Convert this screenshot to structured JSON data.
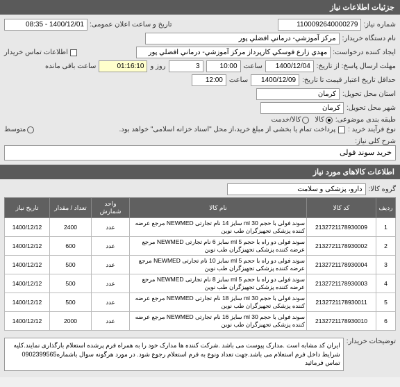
{
  "header1": "جزئیات اطلاعات نیاز",
  "form": {
    "need_no_label": "شماره نیاز:",
    "need_no": "1100092640000279",
    "announce_label": "تاریخ و ساعت اعلان عمومی:",
    "announce_val": "1400/12/01 - 08:35",
    "buyer_label": "نام دستگاه خریدار:",
    "buyer_val": "مرکز آموزشي- درماني افضلي پور",
    "requester_label": "ایجاد کننده درخواست:",
    "requester_val": "مهدي زارع فوسکي کارپرداز مرکز آموزشي- درماني افضلي پور",
    "contact_label": "اطلاعات تماس خریدار",
    "deadline_send_label": "مهلت ارسال پاسخ: از تاریخ:",
    "deadline_send_date": "1400/12/04",
    "time_label": "ساعت",
    "deadline_send_time": "10:00",
    "days_val": "3",
    "days_label": "روز و",
    "remain_time": "01:16:10",
    "remain_label": "ساعت باقی مانده",
    "valid_label": "حداقل تاریخ اعتبار قیمت تا تاریخ:",
    "valid_date": "1400/12/09",
    "valid_time": "12:00",
    "province_label": "استان محل تحویل:",
    "province_val": "کرمان",
    "city_label": "شهر محل تحویل:",
    "city_val": "کرمان",
    "class_label": "طبقه بندی موضوعی:",
    "goods_opt": "کالا",
    "service_opt": "کالا/خدمت",
    "buy_type_label": "نوع فرآیند خرید :",
    "buy_type_text": "پرداخت تمام یا بخشی از مبلغ خرید،از محل \"اسناد خزانه اسلامی\" خواهد بود.",
    "mid_opt": "متوسط"
  },
  "desc": {
    "label": "شرح کلی نیاز:",
    "val": "خرید سوند فولی"
  },
  "header2": "اطلاعات کالاهای مورد نیاز",
  "group": {
    "label": "گروه کالا:",
    "val": "دارو، پزشکی و سلامت"
  },
  "table": {
    "headers": [
      "ردیف",
      "کد کالا",
      "نام کالا",
      "واحد شمارش",
      "تعداد / مقدار",
      "تاریخ نیاز"
    ],
    "rows": [
      [
        "1",
        "2132721178930009",
        "سوند فولی با حجم ml 30 سایز 14 نام تجارتی NEWMED مرجع عرضه کننده پزشکی تجهیزگران طب نوین",
        "عدد",
        "2400",
        "1400/12/12"
      ],
      [
        "2",
        "2132721178930002",
        "سوند فولی دو راه با حجم ml 5 سایز 6 نام تجارتی NEWMED مرجع عرضه کننده پزشکی تجهیزگران طب نوین",
        "عدد",
        "600",
        "1400/12/12"
      ],
      [
        "3",
        "2132721178930004",
        "سوند فولی دو راه با حجم ml 5 سایز 10 نام تجارتی NEWMED مرجع عرضه کننده پزشکی تجهیزگران طب نوین",
        "عدد",
        "500",
        "1400/12/12"
      ],
      [
        "4",
        "2132721178930003",
        "سوند فولی دو راه با حجم ml 5 سایز 8 نام تجارتی NEWMED مرجع عرضه کننده پزشکی تجهیزگران طب نوین",
        "عدد",
        "500",
        "1400/12/12"
      ],
      [
        "5",
        "2132721178930011",
        "سوند فولی با حجم ml 30 سایز 18 نام تجارتی NEWMED مرجع عرضه کننده پزشکی تجهیزگران طب نوین",
        "عدد",
        "500",
        "1400/12/12"
      ],
      [
        "6",
        "2132721178930010",
        "سوند فولی با حجم ml 30 سایز 16 نام تجارتی NEWMED مرجع عرضه کننده پزشکی تجهیزگران طب نوین",
        "عدد",
        "2000",
        "1400/12/12"
      ]
    ]
  },
  "notes": {
    "label": "توضیحات خریدار:",
    "text": "ایران کد مشابه است .مدارک پیوست می باشد .شرکت کننده ها مدارک خود را به همراه فرم پرشده استعلام بارگذاری نمایند.کلیه شرایط داخل فرم استعلام می باشد.جهت تعداد ونوع به فرم استعلام رجوع شود. در مورد هرگونه سوال باشماره0902399565 تماس فرمائید"
  }
}
